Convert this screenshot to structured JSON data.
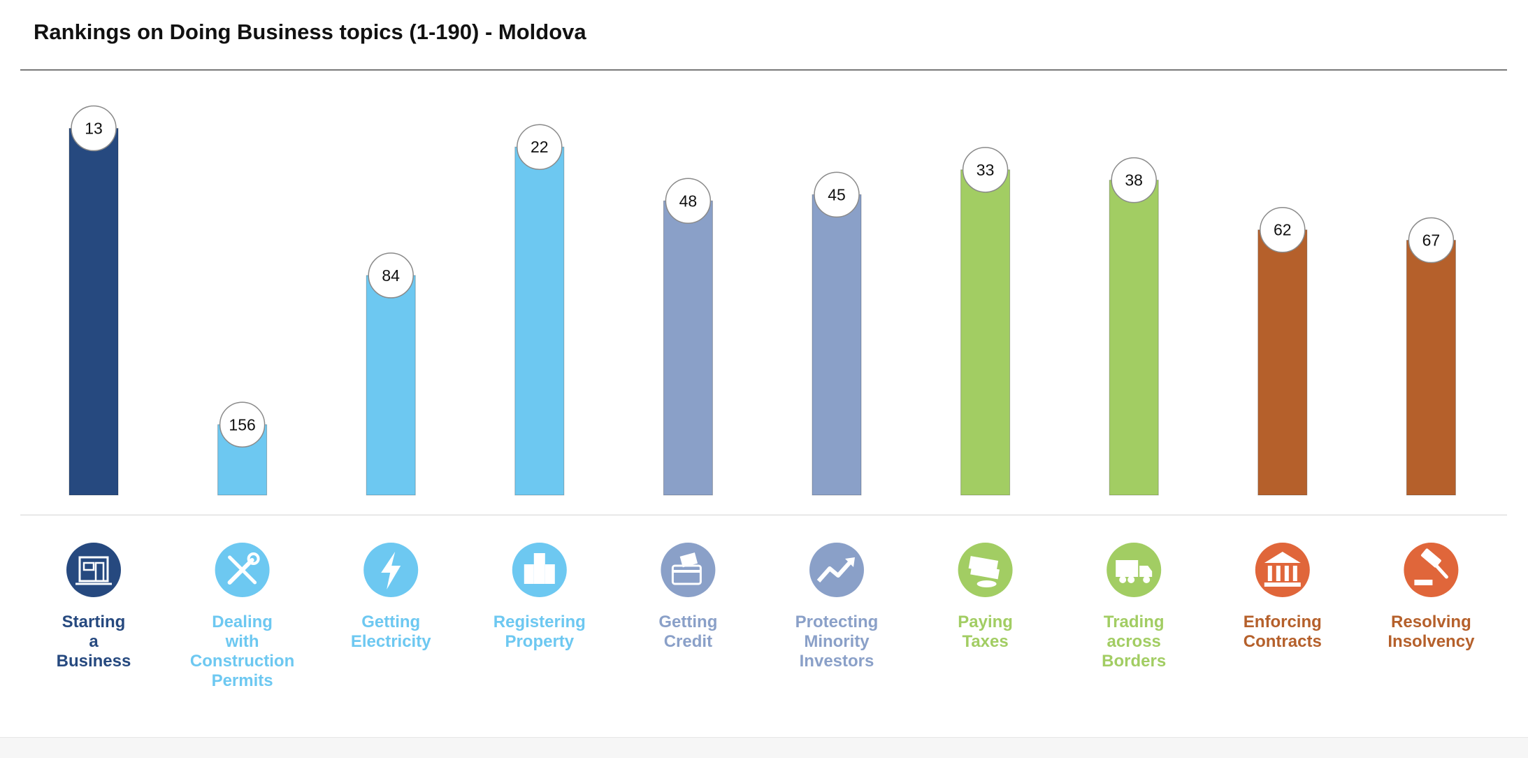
{
  "header": {
    "title": "Rankings on Doing Business topics (1-190) - Moldova"
  },
  "chart_data": {
    "type": "bar",
    "title": "Rankings on Doing Business topics (1-190) - Moldova",
    "xlabel": "",
    "ylabel": "",
    "ylim": [
      0,
      190
    ],
    "inverted": true,
    "grid": false,
    "legend": "none",
    "categories": [
      "Starting a Business",
      "Dealing with Construction Permits",
      "Getting Electricity",
      "Registering Property",
      "Getting Credit",
      "Protecting Minority Investors",
      "Paying Taxes",
      "Trading across Borders",
      "Enforcing Contracts",
      "Resolving Insolvency"
    ],
    "category_lines": [
      [
        "Starting",
        "a",
        "Business"
      ],
      [
        "Dealing",
        "with",
        "Construction",
        "Permits"
      ],
      [
        "Getting",
        "Electricity"
      ],
      [
        "Registering",
        "Property"
      ],
      [
        "Getting",
        "Credit"
      ],
      [
        "Protecting",
        "Minority",
        "Investors"
      ],
      [
        "Paying",
        "Taxes"
      ],
      [
        "Trading",
        "across",
        "Borders"
      ],
      [
        "Enforcing",
        "Contracts"
      ],
      [
        "Resolving",
        "Insolvency"
      ]
    ],
    "values": [
      13,
      156,
      84,
      22,
      48,
      45,
      33,
      38,
      62,
      67
    ],
    "bar_colors": [
      "#26497f",
      "#6dc8f1",
      "#6dc8f1",
      "#6dc8f1",
      "#8aa0c8",
      "#8aa0c8",
      "#a2cd63",
      "#a2cd63",
      "#b5602b",
      "#b5602b"
    ],
    "icon_colors": [
      "#26497f",
      "#6dc8f1",
      "#6dc8f1",
      "#6dc8f1",
      "#8aa0c8",
      "#8aa0c8",
      "#a2cd63",
      "#a2cd63",
      "#e0663a",
      "#e0663a"
    ],
    "label_colors": [
      "#26497f",
      "#6dc8f1",
      "#6dc8f1",
      "#6dc8f1",
      "#8aa0c8",
      "#8aa0c8",
      "#a2cd63",
      "#a2cd63",
      "#b5602b",
      "#b5602b"
    ],
    "icons": [
      "storefront-icon",
      "wrench-screwdriver-icon",
      "lightning-bolt-icon",
      "buildings-icon",
      "credit-card-icon",
      "trend-arrow-icon",
      "money-stack-icon",
      "truck-icon",
      "courthouse-icon",
      "gavel-icon"
    ]
  }
}
